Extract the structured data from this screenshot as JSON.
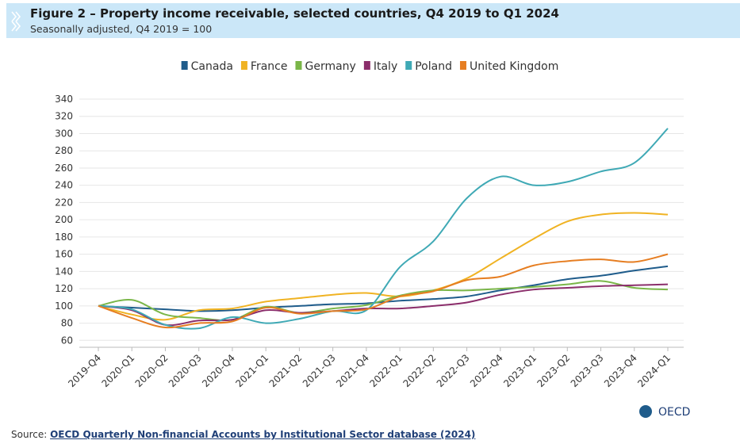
{
  "chart_data": {
    "type": "line",
    "title": "Figure 2 – Property income receivable, selected countries, Q4 2019 to Q1 2024",
    "subtitle": "Seasonally adjusted, Q4 2019 = 100",
    "source_label": "Source:",
    "source_link": "OECD Quarterly Non-financial Accounts by Institutional Sector database (2024)",
    "logo_text": "OECD",
    "categories": [
      "2019-Q4",
      "2020-Q1",
      "2020-Q2",
      "2020-Q3",
      "2020-Q4",
      "2021-Q1",
      "2021-Q2",
      "2021-Q3",
      "2021-Q4",
      "2022-Q1",
      "2022-Q2",
      "2022-Q3",
      "2022-Q4",
      "2023-Q1",
      "2023-Q2",
      "2023-Q3",
      "2023-Q4",
      "2024-Q1"
    ],
    "series": [
      {
        "name": "Canada",
        "color": "#1f5c8b",
        "values": [
          100,
          98,
          96,
          94,
          95,
          98,
          100,
          102,
          103,
          106,
          108,
          111,
          118,
          124,
          131,
          135,
          141,
          146
        ]
      },
      {
        "name": "France",
        "color": "#f0b323",
        "values": [
          100,
          90,
          84,
          95,
          97,
          105,
          109,
          113,
          115,
          111,
          118,
          132,
          155,
          178,
          198,
          206,
          208,
          206
        ]
      },
      {
        "name": "Germany",
        "color": "#7ab648",
        "values": [
          100,
          107,
          90,
          86,
          84,
          99,
          92,
          97,
          101,
          112,
          118,
          118,
          120,
          122,
          125,
          129,
          121,
          119
        ]
      },
      {
        "name": "Italy",
        "color": "#8b2e6b",
        "values": [
          100,
          95,
          78,
          83,
          84,
          95,
          92,
          94,
          97,
          97,
          100,
          104,
          113,
          119,
          121,
          123,
          124,
          125
        ]
      },
      {
        "name": "Poland",
        "color": "#3fa9b5",
        "values": [
          100,
          96,
          78,
          74,
          87,
          80,
          85,
          94,
          95,
          145,
          175,
          225,
          250,
          240,
          244,
          256,
          266,
          306
        ]
      },
      {
        "name": "United Kingdom",
        "color": "#e67e22",
        "values": [
          100,
          86,
          75,
          80,
          82,
          98,
          91,
          94,
          96,
          111,
          117,
          130,
          134,
          147,
          152,
          154,
          151,
          160
        ]
      }
    ],
    "ylim": [
      52,
      340
    ],
    "yticks": [
      60,
      80,
      100,
      120,
      140,
      160,
      180,
      200,
      220,
      240,
      260,
      280,
      300,
      320,
      340
    ],
    "grid": true
  }
}
